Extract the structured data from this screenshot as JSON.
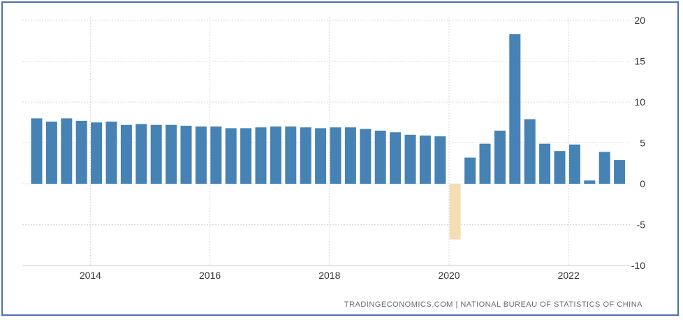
{
  "chart_data": {
    "type": "bar",
    "title": "",
    "xlabel": "",
    "ylabel": "",
    "ylim": [
      -10,
      20
    ],
    "y_ticks": [
      "20",
      "15",
      "10",
      "5",
      "0",
      "-5",
      "-10"
    ],
    "x_ticks": [
      "2014",
      "2016",
      "2018",
      "2020",
      "2022"
    ],
    "grid": "on",
    "legend": "none",
    "source": "TRADINGECONOMICS.COM | NATIONAL BUREAU OF STATISTICS OF CHINA",
    "colors": {
      "positive": "#4682b4",
      "negative": "#f5deb3",
      "grid": "#d9d9d9"
    },
    "categories": [
      "2013 Q1",
      "2013 Q2",
      "2013 Q3",
      "2013 Q4",
      "2014 Q1",
      "2014 Q2",
      "2014 Q3",
      "2014 Q4",
      "2015 Q1",
      "2015 Q2",
      "2015 Q3",
      "2015 Q4",
      "2016 Q1",
      "2016 Q2",
      "2016 Q3",
      "2016 Q4",
      "2017 Q1",
      "2017 Q2",
      "2017 Q3",
      "2017 Q4",
      "2018 Q1",
      "2018 Q2",
      "2018 Q3",
      "2018 Q4",
      "2019 Q1",
      "2019 Q2",
      "2019 Q3",
      "2019 Q4",
      "2020 Q1",
      "2020 Q2",
      "2020 Q3",
      "2020 Q4",
      "2021 Q1",
      "2021 Q2",
      "2021 Q3",
      "2021 Q4",
      "2022 Q1",
      "2022 Q2",
      "2022 Q3",
      "2022 Q4"
    ],
    "values": [
      8.0,
      7.6,
      8.0,
      7.7,
      7.5,
      7.6,
      7.2,
      7.3,
      7.2,
      7.2,
      7.1,
      7.0,
      7.0,
      6.8,
      6.8,
      6.9,
      7.0,
      7.0,
      6.9,
      6.8,
      6.9,
      6.9,
      6.7,
      6.5,
      6.3,
      6.0,
      5.9,
      5.8,
      -6.8,
      3.2,
      4.9,
      6.5,
      18.3,
      7.9,
      4.9,
      4.0,
      4.8,
      0.4,
      3.9,
      2.9
    ]
  }
}
